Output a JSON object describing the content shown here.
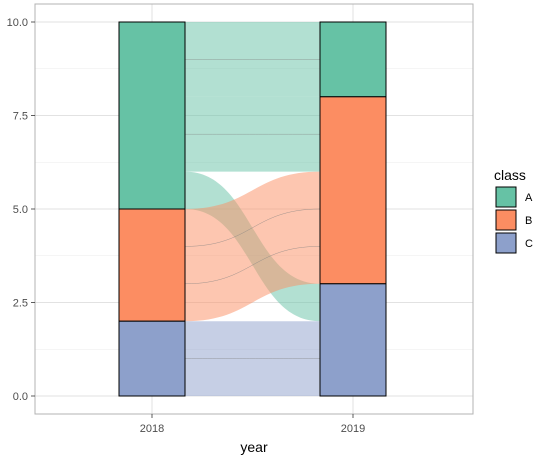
{
  "chart_data": {
    "type": "alluvial",
    "xlabel": "year",
    "ylabel": "",
    "axes": [
      "2018",
      "2019"
    ],
    "ylim": [
      0,
      10
    ],
    "y_ticks": [
      "0.0",
      "2.5",
      "5.0",
      "7.5",
      "10.0"
    ],
    "y_tick_values": [
      0,
      2.5,
      5,
      7.5,
      10
    ],
    "grid": true,
    "legend": {
      "title": "class",
      "position": "right",
      "entries": [
        {
          "name": "A",
          "color": "#66c2a5"
        },
        {
          "name": "B",
          "color": "#fc8d62"
        },
        {
          "name": "C",
          "color": "#8da0cb"
        }
      ]
    },
    "strata": {
      "2018": [
        {
          "class": "A",
          "value": 5
        },
        {
          "class": "B",
          "value": 3
        },
        {
          "class": "C",
          "value": 2
        }
      ],
      "2019": [
        {
          "class": "A",
          "value": 2
        },
        {
          "class": "B",
          "value": 5
        },
        {
          "class": "C",
          "value": 3
        }
      ]
    },
    "flows": [
      {
        "from": "A",
        "to": "A",
        "value": 2,
        "color": "A"
      },
      {
        "from": "A",
        "to": "B",
        "value": 2,
        "color": "A"
      },
      {
        "from": "A",
        "to": "C",
        "value": 1,
        "color": "A"
      },
      {
        "from": "B",
        "to": "B",
        "value": 3,
        "color": "B"
      },
      {
        "from": "C",
        "to": "C",
        "value": 2,
        "color": "C"
      }
    ]
  }
}
